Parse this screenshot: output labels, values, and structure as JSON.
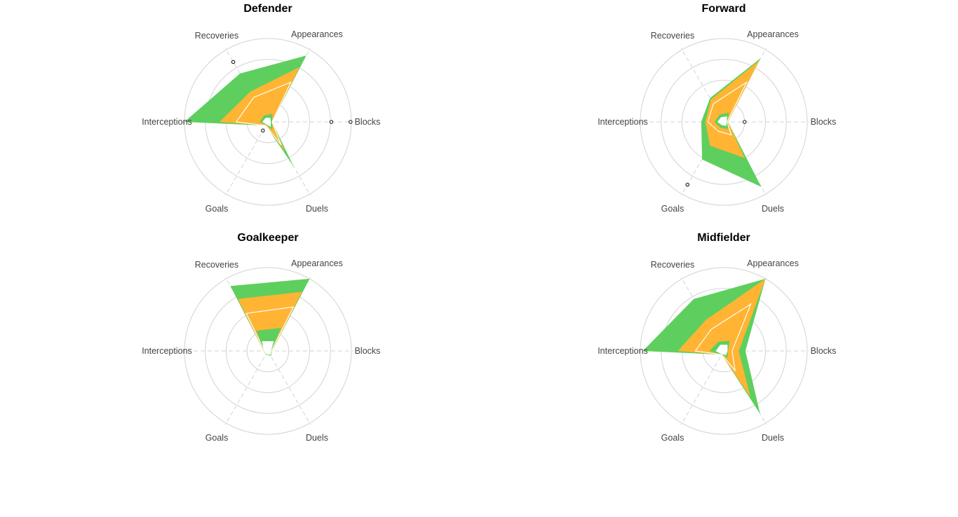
{
  "chart_data": [
    {
      "type": "radar",
      "title": "Defender",
      "axes": [
        "Appearances",
        "Blocks",
        "Duels",
        "Goals",
        "Interceptions",
        "Recoveries"
      ],
      "rlim": [
        0,
        1
      ],
      "series": [
        {
          "color": "#5ecf5e",
          "values": [
            0.92,
            0.05,
            0.62,
            0.05,
            1.0,
            0.67
          ]
        },
        {
          "color": "#ffb433",
          "values": [
            0.76,
            0.05,
            0.42,
            0.05,
            0.58,
            0.42
          ]
        },
        {
          "color": "#ffffff",
          "values": [
            0.55,
            0.05,
            0.32,
            0.05,
            0.38,
            0.34
          ]
        },
        {
          "color": "#5ecf5e",
          "values": [
            0.11,
            0.05,
            0.11,
            0.04,
            0.1,
            0.09
          ]
        },
        {
          "color": "#ffffff",
          "values": [
            0.05,
            0.03,
            0.06,
            0.03,
            0.06,
            0.05
          ]
        }
      ],
      "outliers": [
        {
          "axis": "Blocks",
          "value": 0.76
        },
        {
          "axis": "Blocks",
          "value": 0.99
        },
        {
          "axis": "Recoveries",
          "value": 0.83
        },
        {
          "axis": "Goals",
          "value": 0.12
        }
      ]
    },
    {
      "type": "radar",
      "title": "Forward",
      "axes": [
        "Appearances",
        "Blocks",
        "Duels",
        "Goals",
        "Interceptions",
        "Recoveries"
      ],
      "rlim": [
        0,
        1
      ],
      "series": [
        {
          "color": "#5ecf5e",
          "values": [
            0.88,
            0.05,
            0.9,
            0.52,
            0.27,
            0.33
          ]
        },
        {
          "color": "#ffb433",
          "values": [
            0.85,
            0.05,
            0.5,
            0.33,
            0.22,
            0.31
          ]
        },
        {
          "color": "#ffffff",
          "values": [
            0.55,
            0.04,
            0.18,
            0.13,
            0.19,
            0.25
          ]
        },
        {
          "color": "#5ecf5e",
          "values": [
            0.13,
            0.04,
            0.1,
            0.08,
            0.11,
            0.1
          ]
        },
        {
          "color": "#ffffff",
          "values": [
            0.07,
            0.03,
            0.05,
            0.04,
            0.07,
            0.06
          ]
        }
      ],
      "outliers": [
        {
          "axis": "Blocks",
          "value": 0.25
        },
        {
          "axis": "Goals",
          "value": 0.87
        }
      ]
    },
    {
      "type": "radar",
      "title": "Goalkeeper",
      "axes": [
        "Appearances",
        "Blocks",
        "Duels",
        "Goals",
        "Interceptions",
        "Recoveries"
      ],
      "rlim": [
        0,
        1
      ],
      "series": [
        {
          "color": "#5ecf5e",
          "values": [
            1.0,
            0.05,
            0.07,
            0.05,
            0.05,
            0.9
          ]
        },
        {
          "color": "#ffb433",
          "values": [
            0.82,
            0.05,
            0.06,
            0.04,
            0.05,
            0.72
          ]
        },
        {
          "color": "#ffffff",
          "values": [
            0.61,
            0.04,
            0.05,
            0.04,
            0.04,
            0.52
          ]
        },
        {
          "color": "#5ecf5e",
          "values": [
            0.32,
            0.04,
            0.04,
            0.03,
            0.04,
            0.28
          ]
        },
        {
          "color": "#ffffff",
          "values": [
            0.13,
            0.03,
            0.04,
            0.03,
            0.04,
            0.13
          ]
        }
      ],
      "outliers": []
    },
    {
      "type": "radar",
      "title": "Midfielder",
      "axes": [
        "Appearances",
        "Blocks",
        "Duels",
        "Goals",
        "Interceptions",
        "Recoveries"
      ],
      "rlim": [
        0,
        1
      ],
      "series": [
        {
          "color": "#5ecf5e",
          "values": [
            1.0,
            0.26,
            0.87,
            0.05,
            0.97,
            0.72
          ]
        },
        {
          "color": "#ffb433",
          "values": [
            1.0,
            0.18,
            0.64,
            0.05,
            0.55,
            0.43
          ]
        },
        {
          "color": "#ffffff",
          "values": [
            0.65,
            0.1,
            0.27,
            0.05,
            0.34,
            0.3
          ]
        },
        {
          "color": "#5ecf5e",
          "values": [
            0.14,
            0.05,
            0.09,
            0.05,
            0.17,
            0.13
          ]
        },
        {
          "color": "#ffffff",
          "values": [
            0.08,
            0.04,
            0.05,
            0.04,
            0.09,
            0.08
          ]
        }
      ],
      "outliers": []
    }
  ]
}
